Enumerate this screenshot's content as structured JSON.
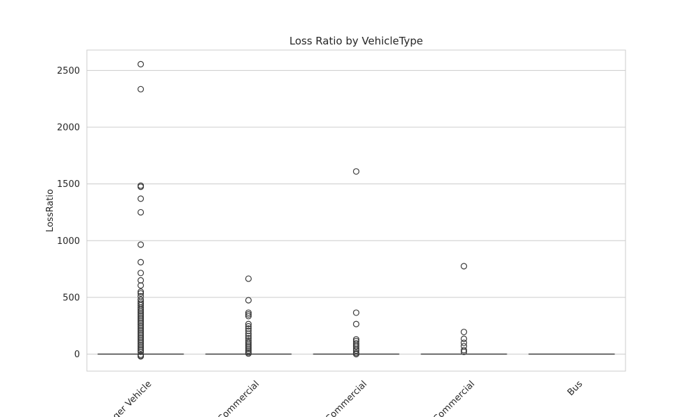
{
  "chart_data": {
    "type": "box",
    "title": "Loss Ratio by VehicleType",
    "xlabel": "",
    "ylabel": "LossRatio",
    "ylim": [
      -150,
      2680
    ],
    "yticks": [
      0,
      500,
      1000,
      1500,
      2000,
      2500
    ],
    "grid": "horizontal",
    "categories": [
      "ger Vehicle",
      "Commercial",
      "Commercial",
      "Commercial",
      "Bus"
    ],
    "boxes": [
      {
        "category": "ger Vehicle",
        "median": 0,
        "whisker_low": 0,
        "whisker_high": 0,
        "fliers": [
          2555,
          2335,
          1485,
          1475,
          1370,
          1250,
          965,
          810,
          715,
          650,
          605,
          550,
          535,
          510,
          480,
          460,
          445,
          430,
          410,
          395,
          380,
          365,
          350,
          335,
          320,
          305,
          290,
          275,
          260,
          245,
          230,
          215,
          200,
          185,
          170,
          155,
          140,
          125,
          110,
          95,
          80,
          65,
          50,
          35,
          20,
          -5,
          -15,
          -20
        ]
      },
      {
        "category": "Commercial",
        "median": 0,
        "whisker_low": 0,
        "whisker_high": 0,
        "fliers": [
          665,
          475,
          365,
          350,
          335,
          265,
          245,
          225,
          205,
          180,
          160,
          140,
          120,
          105,
          90,
          75,
          60,
          45,
          30,
          15,
          5
        ]
      },
      {
        "category": "Commercial",
        "median": 0,
        "whisker_low": 0,
        "whisker_high": 0,
        "fliers": [
          1610,
          365,
          265,
          130,
          115,
          95,
          80,
          65,
          45,
          30,
          10,
          0
        ]
      },
      {
        "category": "Commercial",
        "median": 0,
        "whisker_low": 0,
        "whisker_high": 0,
        "fliers": [
          775,
          195,
          135,
          100,
          70,
          35,
          20
        ]
      },
      {
        "category": "Bus",
        "median": 0,
        "whisker_low": 0,
        "whisker_high": 0,
        "fliers": []
      }
    ]
  }
}
